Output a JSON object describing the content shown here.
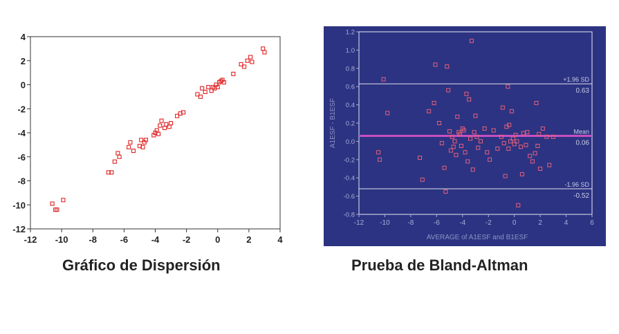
{
  "chart_data": [
    {
      "type": "scatter",
      "title": "Gráfico de Dispersión",
      "xlabel": "",
      "ylabel": "",
      "xlim": [
        -12,
        4
      ],
      "ylim": [
        -12,
        4
      ],
      "xticks": [
        -12,
        -10,
        -8,
        -6,
        -4,
        -2,
        0,
        2,
        4
      ],
      "yticks": [
        4,
        2,
        0,
        -2,
        -4,
        -6,
        -8,
        -10,
        -12
      ],
      "grid": false,
      "marker_color": "#e02020",
      "points": [
        [
          -10.6,
          -9.9
        ],
        [
          -10.4,
          -10.4
        ],
        [
          -10.3,
          -10.4
        ],
        [
          -9.9,
          -9.6
        ],
        [
          -7.0,
          -7.3
        ],
        [
          -6.8,
          -7.3
        ],
        [
          -6.6,
          -6.4
        ],
        [
          -6.4,
          -5.7
        ],
        [
          -6.3,
          -6.0
        ],
        [
          -5.7,
          -5.2
        ],
        [
          -5.6,
          -4.8
        ],
        [
          -5.4,
          -5.5
        ],
        [
          -5.0,
          -5.1
        ],
        [
          -4.9,
          -4.6
        ],
        [
          -4.8,
          -5.2
        ],
        [
          -4.7,
          -4.8
        ],
        [
          -4.6,
          -4.6
        ],
        [
          -4.1,
          -4.2
        ],
        [
          -4.0,
          -4.0
        ],
        [
          -3.9,
          -3.8
        ],
        [
          -3.8,
          -4.1
        ],
        [
          -3.7,
          -3.4
        ],
        [
          -3.6,
          -3.0
        ],
        [
          -3.4,
          -3.6
        ],
        [
          -3.3,
          -3.3
        ],
        [
          -3.1,
          -3.5
        ],
        [
          -3.0,
          -3.2
        ],
        [
          -2.6,
          -2.6
        ],
        [
          -2.4,
          -2.4
        ],
        [
          -2.2,
          -2.3
        ],
        [
          -1.3,
          -0.8
        ],
        [
          -1.1,
          -1.0
        ],
        [
          -1.0,
          -0.3
        ],
        [
          -0.8,
          -0.6
        ],
        [
          -0.6,
          -0.2
        ],
        [
          -0.4,
          -0.5
        ],
        [
          -0.3,
          -0.2
        ],
        [
          -0.2,
          -0.3
        ],
        [
          -0.1,
          0.0
        ],
        [
          0.0,
          -0.2
        ],
        [
          0.1,
          0.2
        ],
        [
          0.2,
          0.3
        ],
        [
          0.3,
          0.4
        ],
        [
          0.4,
          0.2
        ],
        [
          1.0,
          0.9
        ],
        [
          1.5,
          1.7
        ],
        [
          1.7,
          1.5
        ],
        [
          1.9,
          2.0
        ],
        [
          2.1,
          2.3
        ],
        [
          2.2,
          1.9
        ],
        [
          2.9,
          3.0
        ],
        [
          3.0,
          2.7
        ]
      ]
    },
    {
      "type": "scatter",
      "title": "Prueba de Bland-Altman",
      "xlabel": "AVERAGE of A1ESF and B1ESF",
      "ylabel": "A1ESF - B1ESF",
      "xlim": [
        -12,
        6
      ],
      "ylim": [
        -0.8,
        1.2
      ],
      "xticks": [
        -12,
        -10,
        -8,
        -6,
        -4,
        -2,
        0,
        2,
        4,
        6
      ],
      "yticks": [
        1.2,
        1.0,
        0.8,
        0.6,
        0.4,
        0.2,
        0.0,
        -0.2,
        -0.4,
        -0.6,
        -0.8
      ],
      "grid": false,
      "background": "#2c3382",
      "marker_color": "#e8607a",
      "mean_line_color": "#c84fc0",
      "reference_lines": [
        {
          "label": "+1.96 SD",
          "value": 0.63,
          "value_label": "0.63",
          "kind": "upper"
        },
        {
          "label": "Mean",
          "value": 0.06,
          "value_label": "0.06",
          "kind": "mean"
        },
        {
          "label": "-1.96 SD",
          "value": -0.52,
          "value_label": "-0.52",
          "kind": "lower"
        }
      ],
      "points": [
        [
          -10.5,
          -0.12
        ],
        [
          -10.4,
          -0.2
        ],
        [
          -10.1,
          0.68
        ],
        [
          -9.8,
          0.31
        ],
        [
          -7.3,
          -0.18
        ],
        [
          -7.1,
          -0.42
        ],
        [
          -6.6,
          0.33
        ],
        [
          -6.2,
          0.42
        ],
        [
          -6.1,
          0.84
        ],
        [
          -5.8,
          0.2
        ],
        [
          -5.6,
          -0.02
        ],
        [
          -5.4,
          -0.29
        ],
        [
          -5.3,
          -0.55
        ],
        [
          -5.2,
          0.82
        ],
        [
          -5.1,
          0.56
        ],
        [
          -5.0,
          0.11
        ],
        [
          -4.9,
          -0.1
        ],
        [
          -4.8,
          0.05
        ],
        [
          -4.7,
          -0.06
        ],
        [
          -4.6,
          0.0
        ],
        [
          -4.5,
          -0.15
        ],
        [
          -4.4,
          0.27
        ],
        [
          -4.3,
          0.1
        ],
        [
          -4.2,
          0.08
        ],
        [
          -4.1,
          -0.05
        ],
        [
          -4.0,
          0.14
        ],
        [
          -3.9,
          0.12
        ],
        [
          -3.8,
          -0.12
        ],
        [
          -3.7,
          0.52
        ],
        [
          -3.6,
          -0.22
        ],
        [
          -3.5,
          0.46
        ],
        [
          -3.4,
          0.03
        ],
        [
          -3.3,
          1.1
        ],
        [
          -3.2,
          -0.31
        ],
        [
          -3.1,
          0.1
        ],
        [
          -3.0,
          0.28
        ],
        [
          -2.9,
          0.05
        ],
        [
          -2.8,
          -0.07
        ],
        [
          -2.6,
          0.0
        ],
        [
          -2.3,
          0.14
        ],
        [
          -2.1,
          -0.12
        ],
        [
          -1.9,
          -0.2
        ],
        [
          -1.6,
          0.12
        ],
        [
          -1.3,
          -0.08
        ],
        [
          -1.0,
          0.05
        ],
        [
          -0.9,
          0.37
        ],
        [
          -0.8,
          -0.02
        ],
        [
          -0.7,
          -0.38
        ],
        [
          -0.6,
          0.16
        ],
        [
          -0.5,
          0.6
        ],
        [
          -0.45,
          -0.08
        ],
        [
          -0.4,
          0.18
        ],
        [
          -0.3,
          0.0
        ],
        [
          -0.2,
          0.33
        ],
        [
          -0.1,
          0.03
        ],
        [
          0.0,
          -0.03
        ],
        [
          0.1,
          0.07
        ],
        [
          0.2,
          0.0
        ],
        [
          0.3,
          -0.7
        ],
        [
          0.5,
          -0.06
        ],
        [
          0.6,
          -0.36
        ],
        [
          0.7,
          0.09
        ],
        [
          0.9,
          -0.04
        ],
        [
          1.0,
          0.1
        ],
        [
          1.2,
          -0.16
        ],
        [
          1.4,
          -0.22
        ],
        [
          1.6,
          -0.13
        ],
        [
          1.7,
          0.42
        ],
        [
          1.8,
          -0.05
        ],
        [
          1.9,
          0.08
        ],
        [
          2.0,
          -0.3
        ],
        [
          2.2,
          0.14
        ],
        [
          2.5,
          0.05
        ],
        [
          2.7,
          -0.26
        ],
        [
          3.0,
          0.05
        ]
      ]
    }
  ],
  "captions": {
    "left": "Gráfico de Dispersión",
    "right": "Prueba de Bland-Altman"
  }
}
